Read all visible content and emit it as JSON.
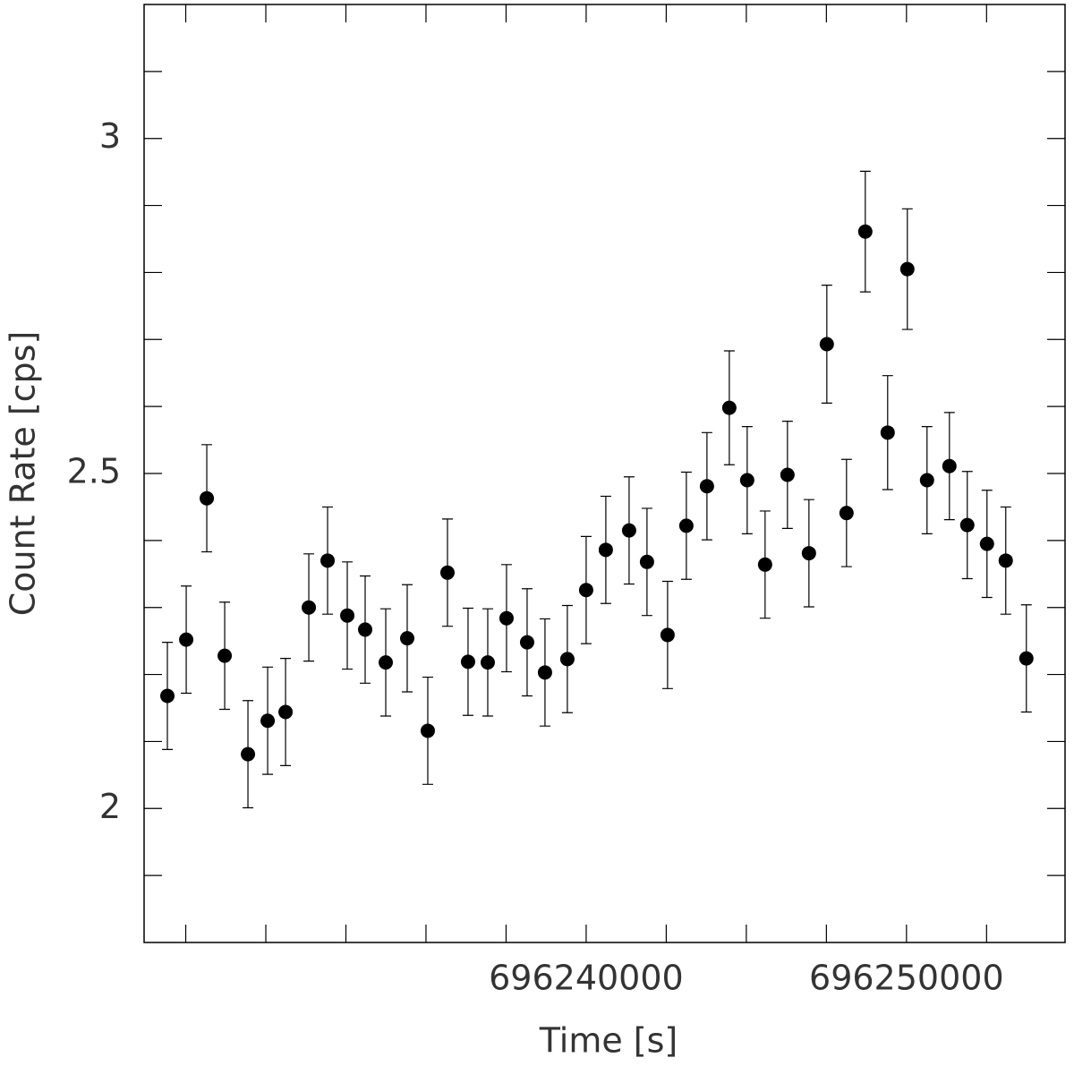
{
  "chart_data": {
    "type": "scatter",
    "x_label": "Time [s]",
    "y_label": "Count Rate [cps]",
    "color": "#000000",
    "x": [
      696226927,
      696227515,
      696228157,
      696228716,
      696229442,
      696230057,
      696230616,
      696231342,
      696231928,
      696232543,
      696233101,
      696233744,
      696234414,
      696235056,
      696235671,
      696236313,
      696236928,
      696237514,
      696238157,
      696238715,
      696239413,
      696240000,
      696240614,
      696241341,
      696241899,
      696242542,
      696243128,
      696243771,
      696244469,
      696245027,
      696245586,
      696246284,
      696246955,
      696247513,
      696248128,
      696248714,
      696249412,
      696250027,
      696250641,
      696251340,
      696251898,
      696252513,
      696253099,
      696253742
    ],
    "values": [
      2.168,
      2.252,
      2.463,
      2.228,
      2.081,
      2.131,
      2.144,
      2.3,
      2.37,
      2.288,
      2.267,
      2.218,
      2.254,
      2.116,
      2.352,
      2.219,
      2.218,
      2.284,
      2.248,
      2.203,
      2.223,
      2.326,
      2.386,
      2.415,
      2.368,
      2.259,
      2.422,
      2.481,
      2.598,
      2.49,
      2.364,
      2.498,
      2.381,
      2.693,
      2.441,
      2.861,
      2.561,
      2.805,
      2.49,
      2.511,
      2.423,
      2.395,
      2.37,
      2.224
    ],
    "errors": [
      0.08,
      0.08,
      0.08,
      0.08,
      0.08,
      0.08,
      0.08,
      0.08,
      0.08,
      0.08,
      0.08,
      0.08,
      0.08,
      0.08,
      0.08,
      0.08,
      0.08,
      0.08,
      0.08,
      0.08,
      0.08,
      0.08,
      0.08,
      0.08,
      0.08,
      0.08,
      0.08,
      0.08,
      0.085,
      0.08,
      0.08,
      0.08,
      0.08,
      0.088,
      0.08,
      0.09,
      0.085,
      0.09,
      0.08,
      0.08,
      0.08,
      0.08,
      0.08,
      0.08
    ],
    "xlim": [
      696226200,
      696254950
    ],
    "ylim": [
      1.8,
      3.2
    ],
    "xticks": [
      696240000,
      696250000
    ],
    "xminorticks": [
      696227500,
      696230000,
      696232500,
      696235000,
      696237500,
      696242500,
      696245000,
      696247500,
      696252500
    ],
    "yticks": [
      2,
      2.5,
      3
    ],
    "yminorticks": [
      1.9,
      2.1,
      2.2,
      2.3,
      2.4,
      2.6,
      2.7,
      2.8,
      2.9,
      3.1
    ]
  }
}
